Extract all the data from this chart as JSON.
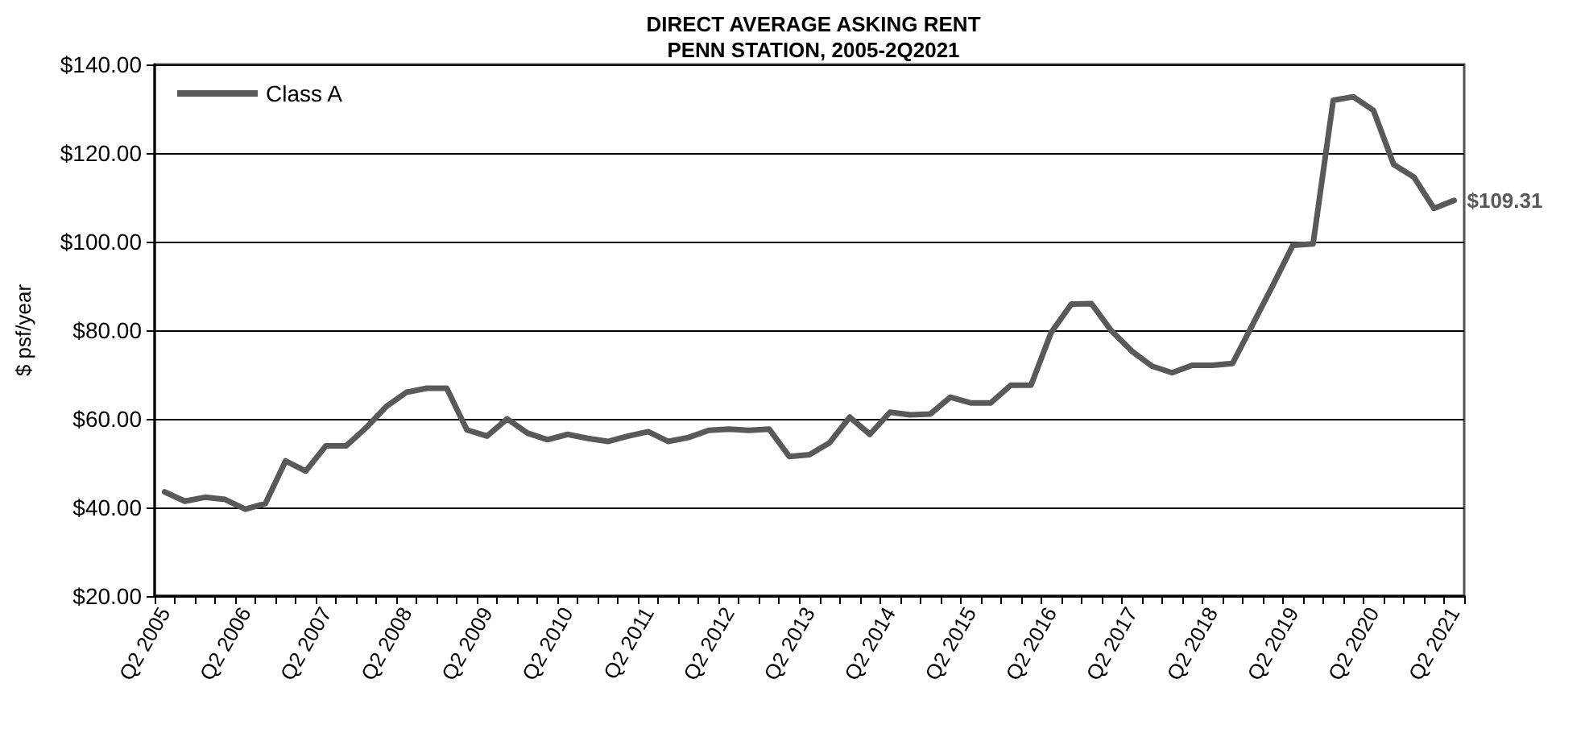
{
  "chart_data": {
    "type": "line",
    "title": "DIRECT AVERAGE ASKING RENT\nPENN STATION, 2005-2Q2021",
    "ylabel": "$ psf/year",
    "categories": [
      "Q2 2005",
      null,
      null,
      null,
      "Q2 2006",
      null,
      null,
      null,
      "Q2 2007",
      null,
      null,
      null,
      "Q2 2008",
      null,
      null,
      null,
      "Q2 2009",
      null,
      null,
      null,
      "Q2 2010",
      null,
      null,
      null,
      "Q2 2011",
      null,
      null,
      null,
      "Q2 2012",
      null,
      null,
      null,
      "Q2 2013",
      null,
      null,
      null,
      "Q2 2014",
      null,
      null,
      null,
      "Q2 2015",
      null,
      null,
      null,
      "Q2 2016",
      null,
      null,
      null,
      "Q2 2017",
      null,
      null,
      null,
      "Q2 2018",
      null,
      null,
      null,
      "Q2 2019",
      null,
      null,
      null,
      "Q2 2020",
      null,
      null,
      null,
      "Q2 2021"
    ],
    "series": [
      {
        "name": "Class A",
        "color": "#595959",
        "values": [
          43.5,
          41.4,
          42.3,
          41.8,
          39.6,
          40.9,
          50.5,
          48.2,
          53.9,
          53.9,
          58.0,
          62.8,
          66.0,
          66.9,
          66.9,
          57.5,
          56.1,
          60.0,
          56.8,
          55.3,
          56.5,
          55.6,
          54.9,
          56.1,
          57.1,
          54.9,
          55.8,
          57.4,
          57.7,
          57.4,
          57.7,
          51.5,
          51.9,
          54.6,
          60.4,
          56.5,
          61.5,
          60.9,
          61.1,
          64.9,
          63.6,
          63.6,
          67.6,
          67.6,
          79.5,
          85.9,
          86.0,
          79.8,
          75.3,
          71.9,
          70.4,
          72.1,
          72.1,
          72.5,
          81.3,
          90.1,
          99.2,
          99.5,
          131.9,
          132.7,
          129.6,
          117.4,
          114.6,
          107.5,
          109.31
        ]
      }
    ],
    "annotations": [
      {
        "text": "$109.31",
        "x": "Q2 2021",
        "y": 109.31
      }
    ],
    "ylim": [
      20,
      140
    ],
    "yticks": [
      {
        "value": 20,
        "label": "$20.00"
      },
      {
        "value": 40,
        "label": "$40.00"
      },
      {
        "value": 60,
        "label": "$60.00"
      },
      {
        "value": 80,
        "label": "$80.00"
      },
      {
        "value": 100,
        "label": "$100.00"
      },
      {
        "value": 120,
        "label": "$120.00"
      },
      {
        "value": 140,
        "label": "$140.00"
      }
    ],
    "grid": "y",
    "legend": "top left",
    "marker": "none",
    "line_style": "solid"
  }
}
